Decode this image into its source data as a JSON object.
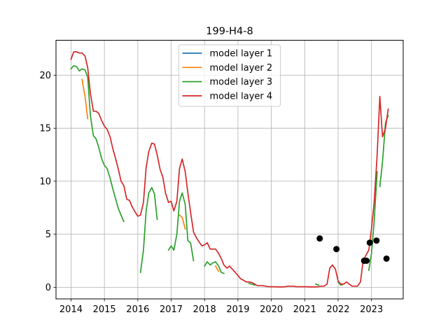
{
  "chart_data": {
    "type": "line",
    "title": "199-H4-8",
    "xlabel": "",
    "ylabel": "",
    "xlim": [
      2013.55,
      2023.95
    ],
    "ylim": [
      -1.1,
      23.3
    ],
    "xticks": [
      2014,
      2015,
      2016,
      2017,
      2018,
      2019,
      2020,
      2021,
      2022,
      2023
    ],
    "yticks": [
      0,
      5,
      10,
      15,
      20
    ],
    "grid": true,
    "legend_position": "upper center",
    "series": [
      {
        "name": "model layer 1",
        "color": "#1f77b4",
        "segments": []
      },
      {
        "name": "model layer 2",
        "color": "#ff7f0e",
        "segments": [
          [
            [
              2014.33,
              19.6
            ],
            [
              2014.42,
              18.0
            ],
            [
              2014.5,
              15.9
            ]
          ],
          [
            [
              2017.25,
              6.8
            ],
            [
              2017.33,
              6.6
            ],
            [
              2017.42,
              5.5
            ]
          ],
          [
            [
              2018.33,
              2.0
            ],
            [
              2018.42,
              1.5
            ]
          ]
        ]
      },
      {
        "name": "model layer 3",
        "color": "#2ca02c",
        "segments": [
          [
            [
              2014.0,
              20.6
            ],
            [
              2014.08,
              20.9
            ],
            [
              2014.17,
              20.8
            ],
            [
              2014.25,
              20.4
            ],
            [
              2014.33,
              20.6
            ],
            [
              2014.42,
              20.5
            ],
            [
              2014.5,
              19.8
            ],
            [
              2014.58,
              16.2
            ],
            [
              2014.67,
              14.3
            ],
            [
              2014.75,
              14.0
            ],
            [
              2014.83,
              13.2
            ],
            [
              2014.92,
              12.1
            ],
            [
              2015.0,
              11.5
            ],
            [
              2015.08,
              11.2
            ],
            [
              2015.17,
              10.3
            ],
            [
              2015.25,
              9.3
            ],
            [
              2015.33,
              8.4
            ],
            [
              2015.42,
              7.4
            ],
            [
              2015.5,
              6.8
            ],
            [
              2015.58,
              6.2
            ]
          ],
          [
            [
              2016.08,
              1.4
            ],
            [
              2016.17,
              3.5
            ],
            [
              2016.25,
              7.2
            ],
            [
              2016.33,
              8.9
            ],
            [
              2016.42,
              9.4
            ],
            [
              2016.5,
              8.8
            ],
            [
              2016.58,
              6.4
            ]
          ],
          [
            [
              2016.92,
              3.5
            ],
            [
              2017.0,
              3.9
            ],
            [
              2017.08,
              3.5
            ],
            [
              2017.17,
              5.0
            ],
            [
              2017.25,
              8.1
            ],
            [
              2017.33,
              8.9
            ],
            [
              2017.42,
              7.8
            ],
            [
              2017.5,
              4.4
            ],
            [
              2017.58,
              4.2
            ],
            [
              2017.67,
              2.5
            ]
          ],
          [
            [
              2018.0,
              2.0
            ],
            [
              2018.08,
              2.4
            ],
            [
              2018.17,
              2.1
            ],
            [
              2018.25,
              2.3
            ],
            [
              2018.33,
              2.4
            ],
            [
              2018.42,
              2.0
            ],
            [
              2018.5,
              1.4
            ],
            [
              2018.58,
              1.3
            ]
          ],
          [
            [
              2019.33,
              0.35
            ],
            [
              2019.42,
              0.3
            ],
            [
              2019.5,
              0.2
            ]
          ],
          [
            [
              2021.33,
              0.3
            ],
            [
              2021.42,
              0.2
            ]
          ],
          [
            [
              2022.0,
              0.5
            ],
            [
              2022.08,
              0.2
            ],
            [
              2022.17,
              0.3
            ]
          ],
          [
            [
              2022.92,
              1.6
            ],
            [
              2023.0,
              3.2
            ],
            [
              2023.08,
              6.2
            ],
            [
              2023.17,
              10.9
            ]
          ],
          [
            [
              2023.25,
              9.5
            ],
            [
              2023.33,
              11.8
            ],
            [
              2023.42,
              15.5
            ],
            [
              2023.5,
              16.2
            ]
          ]
        ]
      },
      {
        "name": "model layer 4",
        "color": "#d62728",
        "segments": [
          [
            [
              2014.0,
              21.5
            ],
            [
              2014.08,
              22.2
            ],
            [
              2014.17,
              22.2
            ],
            [
              2014.25,
              22.1
            ],
            [
              2014.33,
              22.1
            ],
            [
              2014.42,
              21.8
            ],
            [
              2014.5,
              20.7
            ],
            [
              2014.58,
              18.3
            ],
            [
              2014.67,
              16.6
            ],
            [
              2014.75,
              16.6
            ],
            [
              2014.83,
              16.4
            ],
            [
              2014.92,
              15.7
            ],
            [
              2015.0,
              15.2
            ],
            [
              2015.08,
              14.9
            ],
            [
              2015.17,
              14.2
            ],
            [
              2015.25,
              13.1
            ],
            [
              2015.33,
              12.2
            ],
            [
              2015.42,
              11.1
            ],
            [
              2015.5,
              10.0
            ],
            [
              2015.58,
              9.6
            ],
            [
              2015.67,
              8.3
            ],
            [
              2015.75,
              8.2
            ],
            [
              2015.83,
              7.6
            ],
            [
              2015.92,
              7.1
            ],
            [
              2016.0,
              6.7
            ],
            [
              2016.08,
              6.8
            ],
            [
              2016.17,
              8.0
            ],
            [
              2016.25,
              11.3
            ],
            [
              2016.33,
              12.8
            ],
            [
              2016.42,
              13.6
            ],
            [
              2016.5,
              13.5
            ],
            [
              2016.58,
              12.5
            ],
            [
              2016.67,
              11.1
            ],
            [
              2016.75,
              10.4
            ],
            [
              2016.83,
              8.9
            ],
            [
              2016.92,
              8.0
            ],
            [
              2017.0,
              8.1
            ],
            [
              2017.08,
              7.2
            ],
            [
              2017.17,
              8.1
            ],
            [
              2017.25,
              11.2
            ],
            [
              2017.33,
              12.1
            ],
            [
              2017.42,
              10.9
            ],
            [
              2017.5,
              8.9
            ],
            [
              2017.58,
              7.1
            ],
            [
              2017.67,
              5.2
            ],
            [
              2017.75,
              4.7
            ],
            [
              2017.83,
              4.3
            ],
            [
              2017.92,
              3.9
            ],
            [
              2018.0,
              4.0
            ],
            [
              2018.08,
              4.2
            ],
            [
              2018.17,
              3.6
            ],
            [
              2018.25,
              3.6
            ],
            [
              2018.33,
              3.6
            ],
            [
              2018.42,
              3.2
            ],
            [
              2018.5,
              2.7
            ],
            [
              2018.58,
              2.1
            ],
            [
              2018.67,
              1.8
            ],
            [
              2018.75,
              2.0
            ],
            [
              2018.83,
              1.7
            ],
            [
              2018.92,
              1.4
            ],
            [
              2019.0,
              1.1
            ],
            [
              2019.08,
              0.8
            ],
            [
              2019.17,
              0.65
            ],
            [
              2019.25,
              0.5
            ],
            [
              2019.33,
              0.5
            ],
            [
              2019.42,
              0.45
            ],
            [
              2019.5,
              0.3
            ],
            [
              2019.58,
              0.15
            ],
            [
              2019.67,
              0.15
            ],
            [
              2019.75,
              0.15
            ],
            [
              2019.83,
              0.1
            ],
            [
              2019.92,
              0.05
            ],
            [
              2020.0,
              0.05
            ],
            [
              2020.08,
              0.05
            ],
            [
              2020.17,
              0.03
            ],
            [
              2020.25,
              0.03
            ],
            [
              2020.33,
              0.03
            ],
            [
              2020.42,
              0.05
            ],
            [
              2020.5,
              0.1
            ],
            [
              2020.58,
              0.1
            ],
            [
              2020.67,
              0.1
            ],
            [
              2020.75,
              0.05
            ],
            [
              2020.83,
              0.05
            ],
            [
              2020.92,
              0.05
            ],
            [
              2021.0,
              0.05
            ],
            [
              2021.08,
              0.05
            ],
            [
              2021.17,
              0.03
            ],
            [
              2021.25,
              0.03
            ],
            [
              2021.33,
              0.03
            ],
            [
              2021.42,
              0.05
            ],
            [
              2021.5,
              0.1
            ],
            [
              2021.58,
              0.1
            ],
            [
              2021.67,
              0.3
            ],
            [
              2021.75,
              1.8
            ],
            [
              2021.83,
              2.1
            ],
            [
              2021.92,
              1.7
            ],
            [
              2022.0,
              0.6
            ],
            [
              2022.08,
              0.3
            ],
            [
              2022.17,
              0.3
            ],
            [
              2022.25,
              0.5
            ],
            [
              2022.33,
              0.3
            ],
            [
              2022.42,
              0.1
            ],
            [
              2022.5,
              0.1
            ],
            [
              2022.58,
              0.1
            ],
            [
              2022.67,
              0.5
            ],
            [
              2022.75,
              2.5
            ],
            [
              2022.83,
              3.0
            ],
            [
              2022.92,
              3.5
            ],
            [
              2023.0,
              5.5
            ],
            [
              2023.08,
              8.0
            ],
            [
              2023.17,
              12.5
            ],
            [
              2023.25,
              18.0
            ],
            [
              2023.33,
              14.2
            ],
            [
              2023.42,
              15.0
            ],
            [
              2023.5,
              16.8
            ]
          ]
        ]
      }
    ],
    "observations": {
      "name": "",
      "color": "#000000",
      "points": [
        [
          2021.45,
          4.6
        ],
        [
          2021.95,
          3.6
        ],
        [
          2022.78,
          2.5
        ],
        [
          2022.85,
          2.5
        ],
        [
          2022.95,
          4.2
        ],
        [
          2023.15,
          4.4
        ],
        [
          2023.45,
          2.7
        ]
      ]
    }
  }
}
